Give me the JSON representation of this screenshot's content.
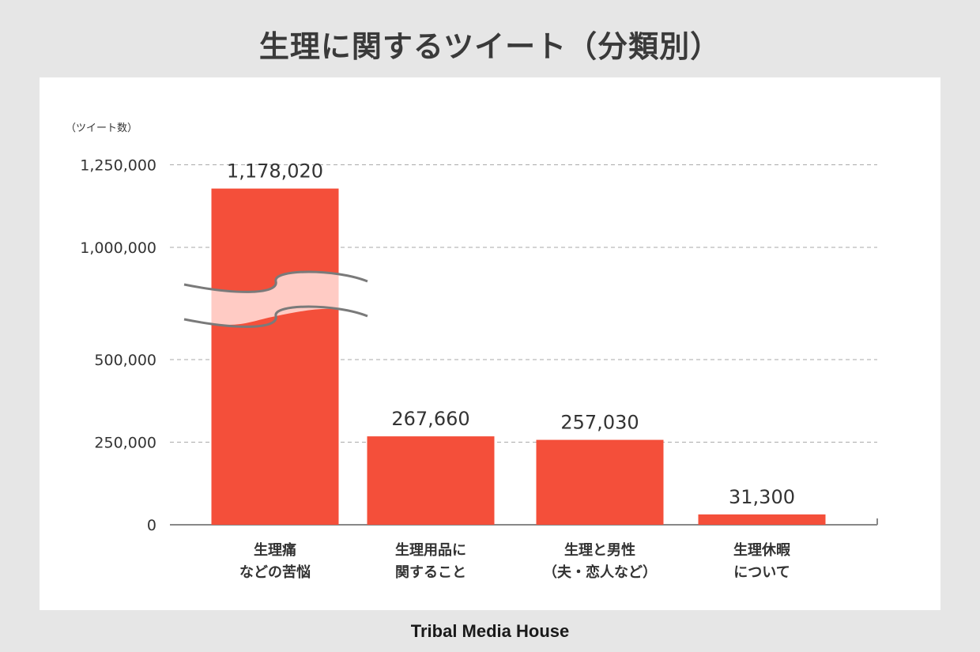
{
  "title": "生理に関するツイート（分類別）",
  "brand": "Tribal Media House",
  "colors": {
    "bar": "#f44f3a",
    "break_band": "#ffcbc4",
    "grid": "#aaaaaa",
    "axis": "#888888",
    "break_line": "#7a7a7a"
  },
  "chart_data": {
    "type": "bar",
    "ylabel": "（ツイート数）",
    "y_ticks": [
      0,
      250000,
      500000,
      1000000,
      1250000
    ],
    "y_tick_labels": [
      "0",
      "250,000",
      "500,000",
      "1,000,000",
      "1,250,000"
    ],
    "axis_break": [
      500000,
      1000000
    ],
    "grid": "dashed",
    "categories": [
      [
        "生理痛",
        "などの苦悩"
      ],
      [
        "生理用品に",
        "関すること"
      ],
      [
        "生理と男性",
        "（夫・恋人など）"
      ],
      [
        "生理休暇",
        "について"
      ]
    ],
    "values": [
      1178020,
      267660,
      257030,
      31300
    ],
    "value_labels": [
      "1,178,020",
      "267,660",
      "257,030",
      "31,300"
    ]
  }
}
